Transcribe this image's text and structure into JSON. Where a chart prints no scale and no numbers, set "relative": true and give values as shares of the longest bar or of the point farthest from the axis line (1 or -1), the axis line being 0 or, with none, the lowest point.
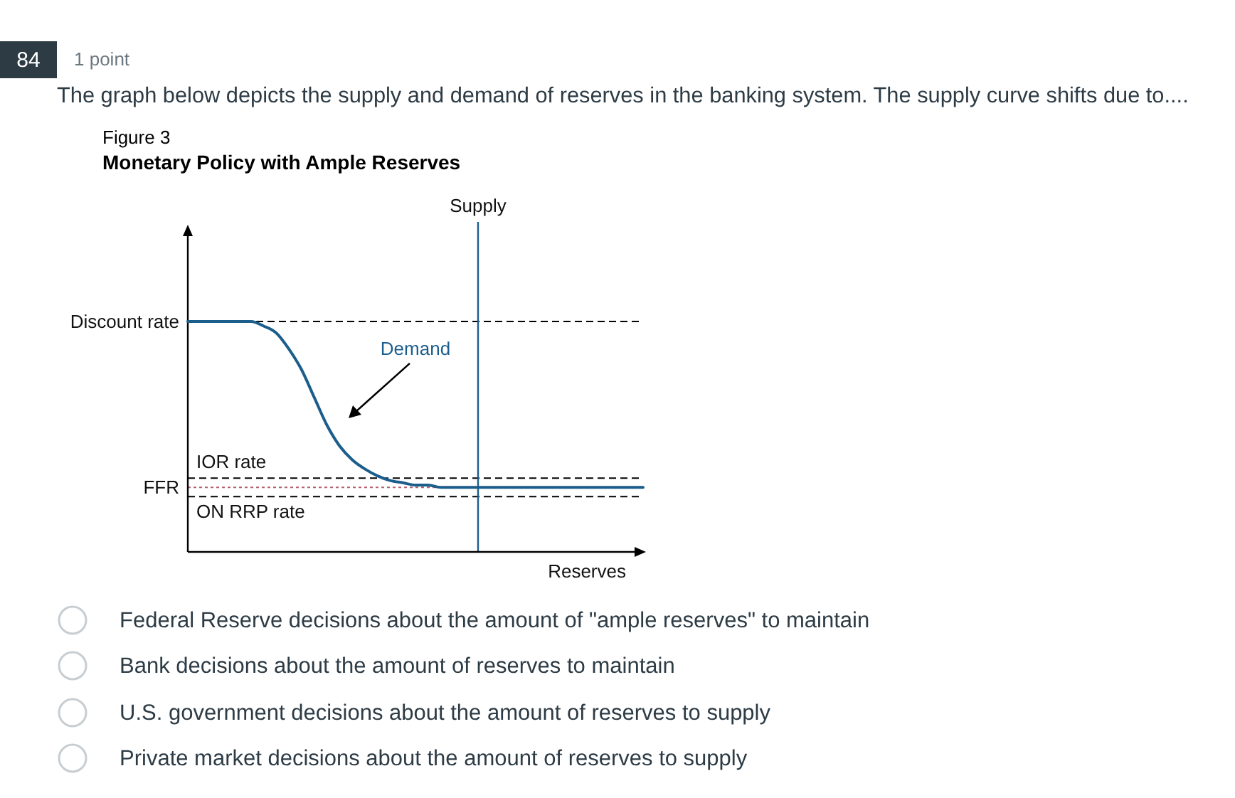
{
  "chart_data": {
    "type": "line",
    "relative": true,
    "title": "Monetary Policy with Ample Reserves",
    "xlabel": "Reserves",
    "annotations": [
      "84",
      "1 point",
      "The graph below depicts the supply and demand of reserves in the banking system. The supply curve shifts due to....",
      "Figure 3",
      "Supply",
      "Federal Reserve decisions about the amount of \"ample reserves\" to maintain",
      "Bank decisions about the amount of reserves to maintain",
      "U.S. government decisions about the amount of reserves to supply",
      "Private market decisions about the amount of reserves to supply"
    ],
    "categories": [
      null,
      null,
      null,
      null,
      null,
      null,
      null,
      null,
      null,
      null,
      null,
      null,
      null,
      null,
      null,
      null,
      null,
      null,
      null,
      null,
      null,
      null,
      null,
      null,
      null,
      null,
      null,
      null,
      null,
      null,
      null,
      null,
      null,
      null,
      null,
      null,
      null
    ],
    "series": [
      {
        "name": "Demand",
        "color": "#1b5e8c",
        "values": [
          1,
          1,
          1,
          1,
          1,
          1,
          0.98,
          0.95,
          0.88,
          0.79,
          0.67,
          0.55,
          0.46,
          0.4,
          0.36,
          0.33,
          0.31,
          0.3,
          0.29,
          0.29,
          0.28,
          0.28,
          0.28,
          0.28,
          0.28,
          0.28,
          0.28,
          0.28,
          0.28,
          0.28,
          0.28,
          0.28,
          0.28,
          0.28,
          0.28,
          0.28,
          0.28
        ]
      }
    ],
    "ref_lines": [
      {
        "axis": "y",
        "value": 1,
        "label": "Discount rate",
        "color": "#000000",
        "line_style": "dashed"
      },
      {
        "axis": "y",
        "value": 0.32,
        "label": "IOR rate",
        "color": "#000000",
        "line_style": "dashed"
      },
      {
        "axis": "y",
        "value": 0.28,
        "label": "FFR",
        "color": "#b5606e",
        "line_style": "dotted"
      },
      {
        "axis": "y",
        "value": 0.24,
        "label": "ON RRP rate",
        "color": "#000000",
        "line_style": "dashed"
      }
    ]
  }
}
